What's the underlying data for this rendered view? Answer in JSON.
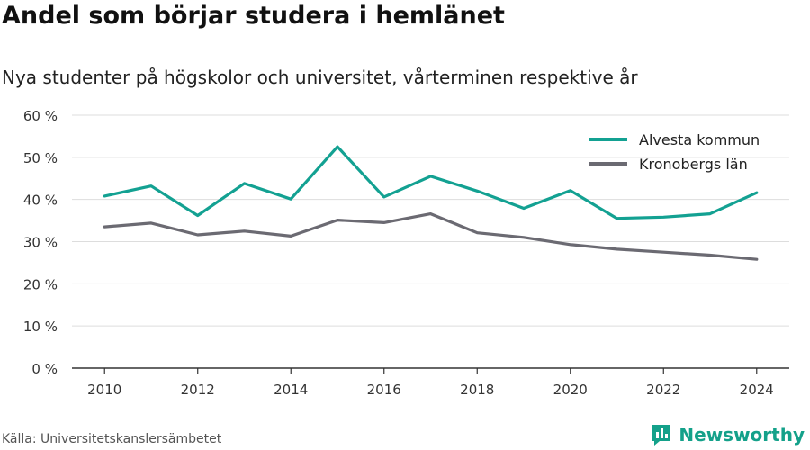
{
  "title": "Andel som börjar studera i hemlänet",
  "subtitle": "Nya studenter på högskolor och universitet, vårterminen respektive år",
  "source": "Källa: Universitetskanslersämbetet",
  "brand": "Newsworthy",
  "brand_icon": "newsworthy-logo-icon",
  "colors": {
    "accent": "#13a192",
    "secondary": "#6b6a72",
    "grid": "#dddddd",
    "axis": "#333333"
  },
  "chart_data": {
    "type": "line",
    "x": [
      2010,
      2011,
      2012,
      2013,
      2014,
      2015,
      2016,
      2017,
      2018,
      2019,
      2020,
      2021,
      2022,
      2023,
      2024
    ],
    "series": [
      {
        "name": "Alvesta kommun",
        "color": "#13a192",
        "values": [
          40.8,
          43.2,
          36.2,
          43.8,
          40.1,
          52.5,
          40.6,
          45.5,
          42.0,
          37.9,
          42.1,
          35.5,
          35.8,
          36.6,
          41.6
        ]
      },
      {
        "name": "Kronobergs län",
        "color": "#6b6a72",
        "values": [
          33.5,
          34.4,
          31.6,
          32.5,
          31.3,
          35.1,
          34.5,
          36.6,
          32.1,
          31.0,
          29.3,
          28.2,
          27.5,
          26.8,
          25.8
        ]
      }
    ],
    "xticks": [
      2010,
      2012,
      2014,
      2016,
      2018,
      2020,
      2022,
      2024
    ],
    "yticks": [
      0,
      10,
      20,
      30,
      40,
      50,
      60
    ],
    "ytick_labels": [
      "0 %",
      "10 %",
      "20 %",
      "30 %",
      "40 %",
      "50 %",
      "60 %"
    ],
    "ylim": [
      0,
      60
    ],
    "xlim": [
      2009.3,
      2024.7
    ],
    "grid": true,
    "legend_position": "top-right"
  }
}
